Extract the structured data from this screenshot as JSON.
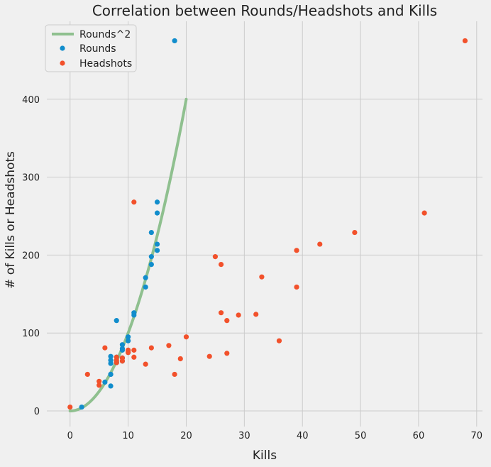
{
  "chart_data": {
    "type": "scatter",
    "title": "Correlation between Rounds/Headshots and Kills",
    "xlabel": "Kills",
    "ylabel": "# of Kills or Headshots",
    "xlim": [
      -4,
      71
    ],
    "ylim": [
      -20,
      500
    ],
    "xticks": [
      0,
      10,
      20,
      30,
      40,
      50,
      60,
      70
    ],
    "yticks": [
      0,
      100,
      200,
      300,
      400
    ],
    "grid": true,
    "legend_position": "top-left",
    "curve": {
      "name": "Rounds^2",
      "type": "line",
      "color": "#8fc08f",
      "function": "y = x^2",
      "x_range": [
        0,
        20
      ]
    },
    "series": [
      {
        "name": "Rounds",
        "color": "#118dcc",
        "points": [
          [
            2,
            5
          ],
          [
            6,
            37
          ],
          [
            7,
            32
          ],
          [
            7,
            47
          ],
          [
            7,
            47
          ],
          [
            7,
            61
          ],
          [
            7,
            65
          ],
          [
            7,
            70
          ],
          [
            8,
            62
          ],
          [
            8,
            63
          ],
          [
            8,
            69
          ],
          [
            8,
            116
          ],
          [
            9,
            64
          ],
          [
            9,
            68
          ],
          [
            9,
            78
          ],
          [
            9,
            80
          ],
          [
            9,
            85
          ],
          [
            10,
            75
          ],
          [
            10,
            78
          ],
          [
            10,
            90
          ],
          [
            10,
            95
          ],
          [
            11,
            123
          ],
          [
            11,
            126
          ],
          [
            13,
            159
          ],
          [
            13,
            171
          ],
          [
            14,
            188
          ],
          [
            14,
            198
          ],
          [
            14,
            229
          ],
          [
            15,
            206
          ],
          [
            15,
            214
          ],
          [
            15,
            254
          ],
          [
            15,
            268
          ],
          [
            18,
            475
          ]
        ]
      },
      {
        "name": "Headshots",
        "color": "#f2512b",
        "points": [
          [
            0,
            5
          ],
          [
            3,
            47
          ],
          [
            5,
            33
          ],
          [
            5,
            38
          ],
          [
            6,
            81
          ],
          [
            8,
            62
          ],
          [
            8,
            65
          ],
          [
            8,
            69
          ],
          [
            9,
            64
          ],
          [
            9,
            68
          ],
          [
            10,
            75
          ],
          [
            10,
            78
          ],
          [
            11,
            69
          ],
          [
            11,
            78
          ],
          [
            11,
            268
          ],
          [
            13,
            60
          ],
          [
            14,
            81
          ],
          [
            17,
            84
          ],
          [
            18,
            47
          ],
          [
            19,
            67
          ],
          [
            20,
            95
          ],
          [
            24,
            70
          ],
          [
            25,
            198
          ],
          [
            26,
            126
          ],
          [
            26,
            188
          ],
          [
            27,
            74
          ],
          [
            27,
            116
          ],
          [
            29,
            123
          ],
          [
            32,
            124
          ],
          [
            33,
            172
          ],
          [
            36,
            90
          ],
          [
            39,
            159
          ],
          [
            39,
            206
          ],
          [
            43,
            214
          ],
          [
            49,
            229
          ],
          [
            61,
            254
          ],
          [
            68,
            475
          ]
        ]
      }
    ]
  }
}
